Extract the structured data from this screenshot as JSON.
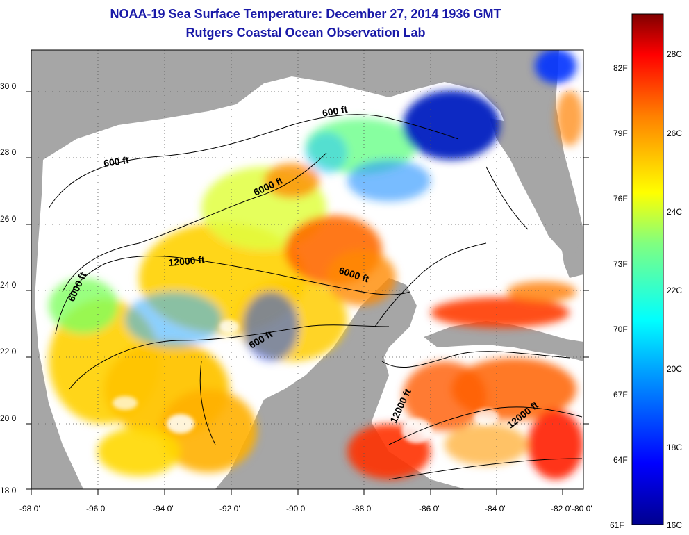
{
  "title": {
    "line1": "NOAA-19 Sea Surface Temperature:  December 27, 2014 1936 GMT",
    "line2": "Rutgers Coastal Ocean Observation Lab"
  },
  "axes": {
    "lon_ticks": [
      "-98 0'",
      "-96 0'",
      "-94 0'",
      "-92 0'",
      "-90 0'",
      "-88 0'",
      "-86 0'",
      "-84 0'",
      "-82 0'",
      "-80 0'"
    ],
    "lat_ticks": [
      "30 0'",
      "28 0'",
      "26 0'",
      "24 0'",
      "22 0'",
      "20 0'",
      "18 0'"
    ]
  },
  "contours": {
    "labels": [
      "600 ft",
      "600 ft",
      "6000 ft",
      "6000 ft",
      "12000 ft",
      "6000 ft",
      "600 ft",
      "12000 ft",
      "12000 ft"
    ]
  },
  "colorbar": {
    "fahrenheit": [
      "82F",
      "79F",
      "76F",
      "73F",
      "70F",
      "67F",
      "64F",
      "61F"
    ],
    "celsius": [
      "28C",
      "26C",
      "24C",
      "22C",
      "20C",
      "18C",
      "16C"
    ]
  },
  "colors": {
    "land": "#a6a6a6",
    "nodata": "#ffffff",
    "title": "#1a1aa8"
  }
}
